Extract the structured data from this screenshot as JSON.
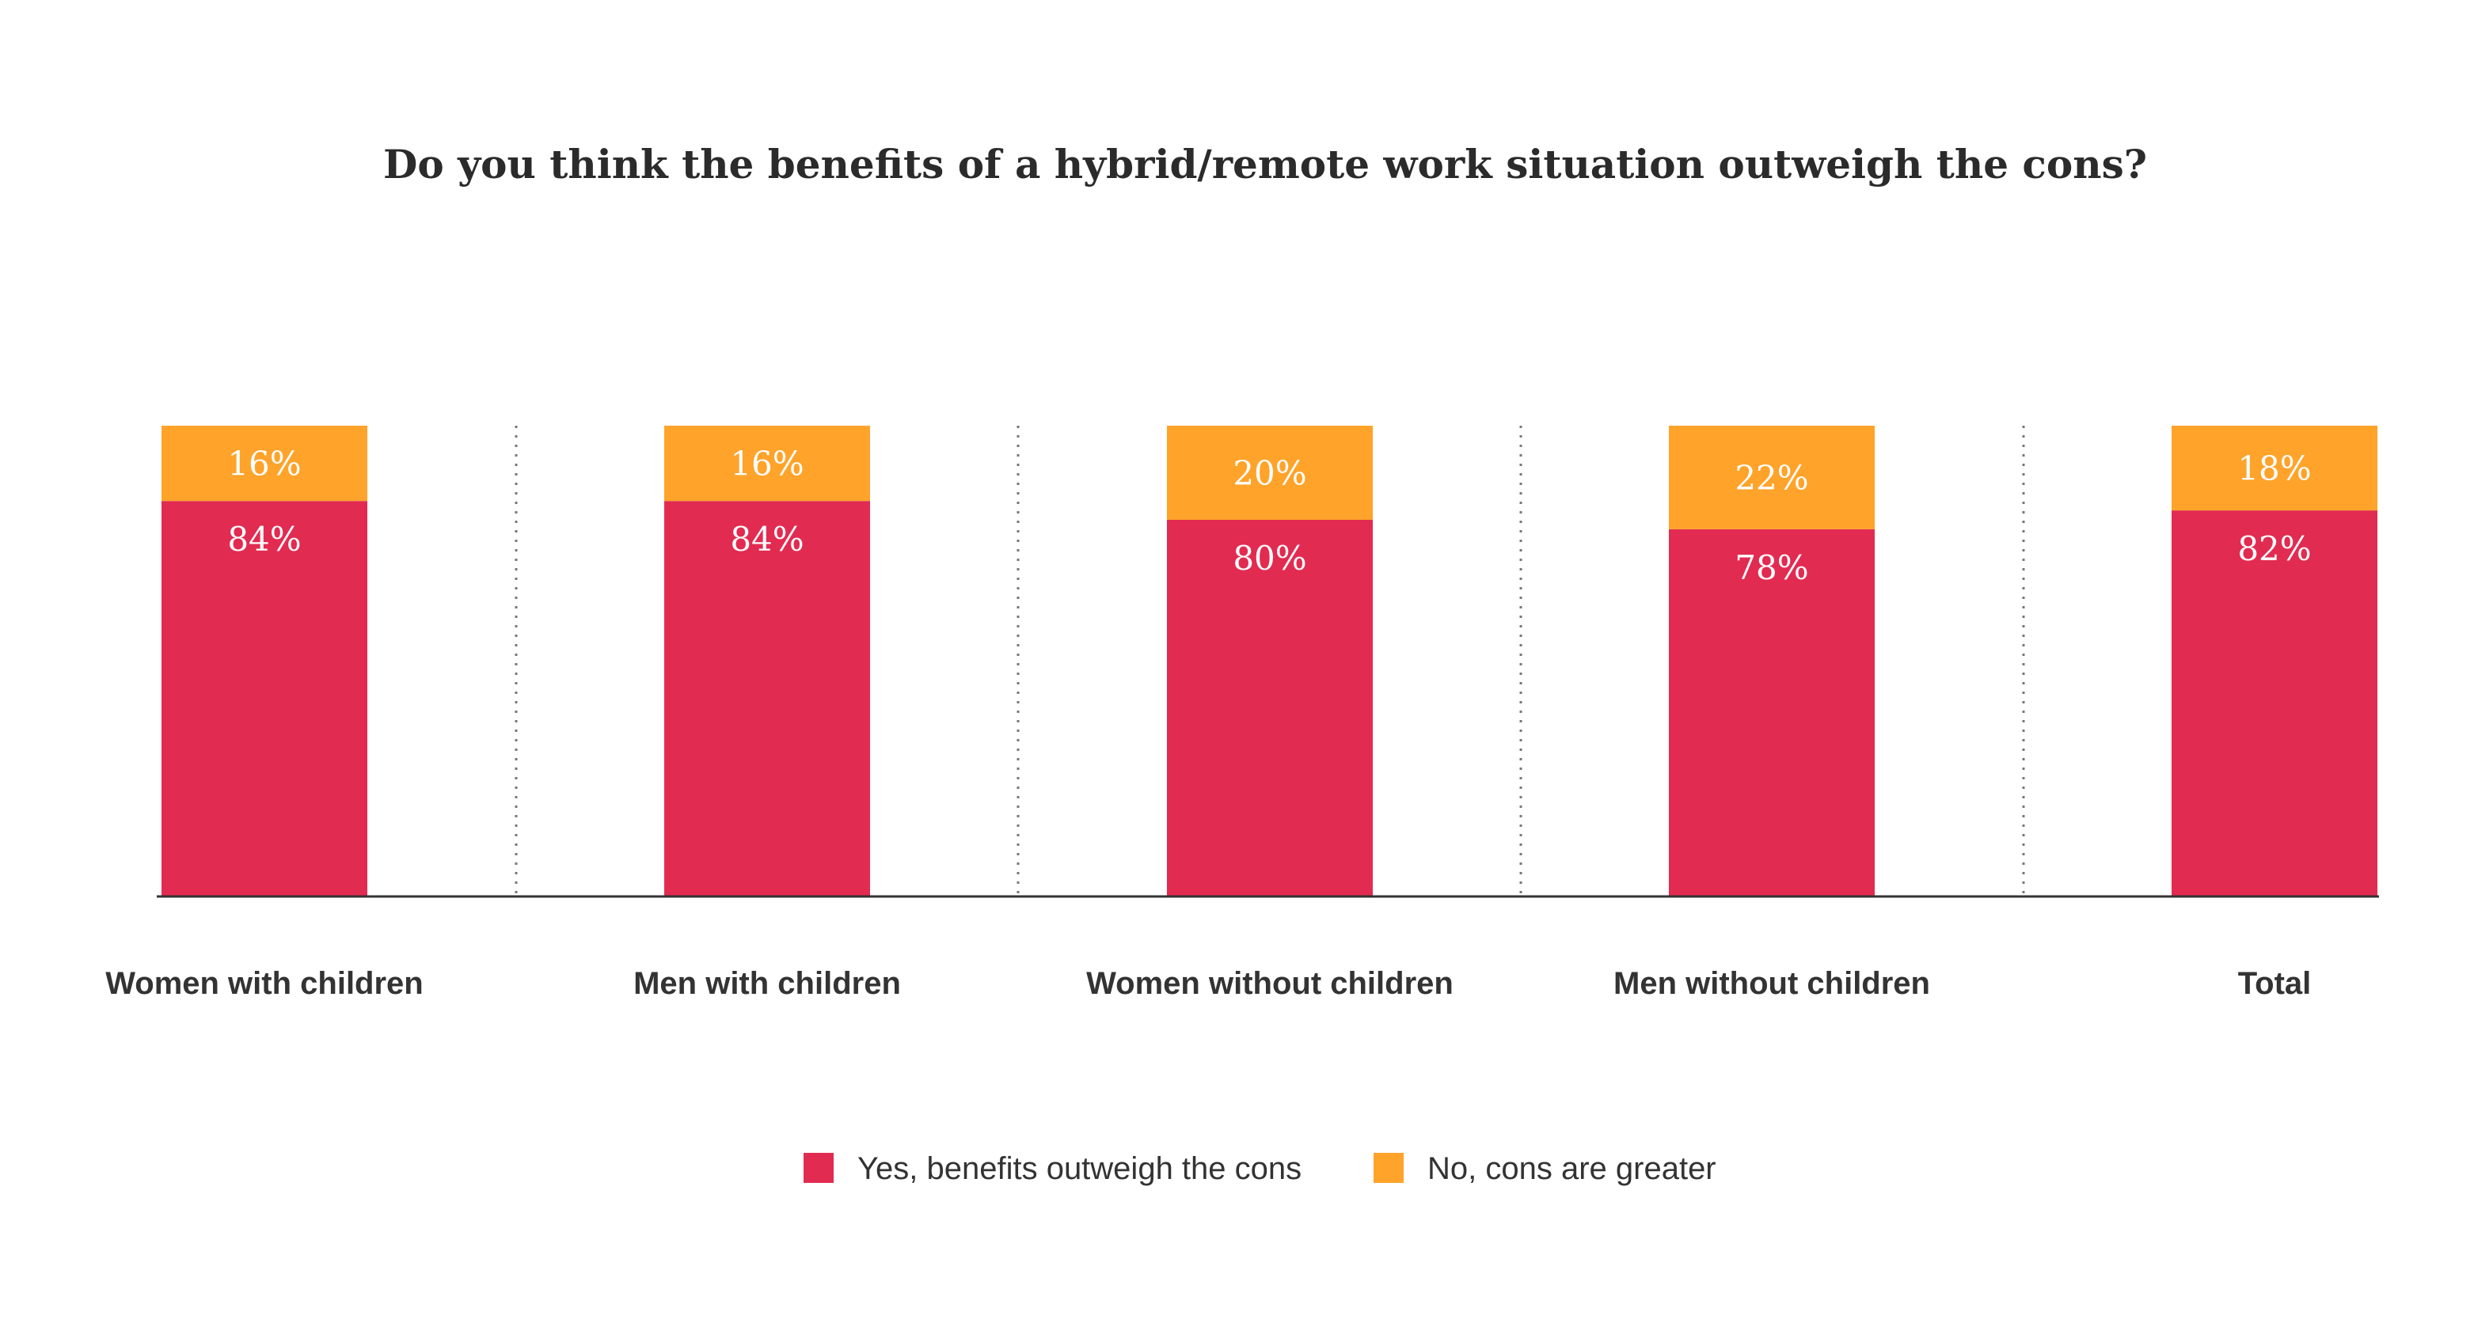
{
  "chart_data": {
    "type": "bar",
    "stacked": true,
    "title": "Do you think the benefits of a hybrid/remote work situation outweigh the cons?",
    "categories": [
      "Women with children",
      "Men with children",
      "Women without children",
      "Men without children",
      "Total"
    ],
    "series": [
      {
        "name": "Yes, benefits outweigh the cons",
        "values": [
          84,
          84,
          80,
          78,
          82
        ],
        "labels": [
          "84%",
          "84%",
          "80%",
          "78%",
          "82%"
        ],
        "color": "#e22b51"
      },
      {
        "name": "No, cons are greater",
        "values": [
          16,
          16,
          20,
          22,
          18
        ],
        "labels": [
          "16%",
          "16%",
          "20%",
          "22%",
          "18%"
        ],
        "color": "#ffa32a"
      }
    ],
    "ylim": [
      0,
      100
    ],
    "grid": false,
    "legend": "bottom-center",
    "separators": "dotted-vertical"
  }
}
